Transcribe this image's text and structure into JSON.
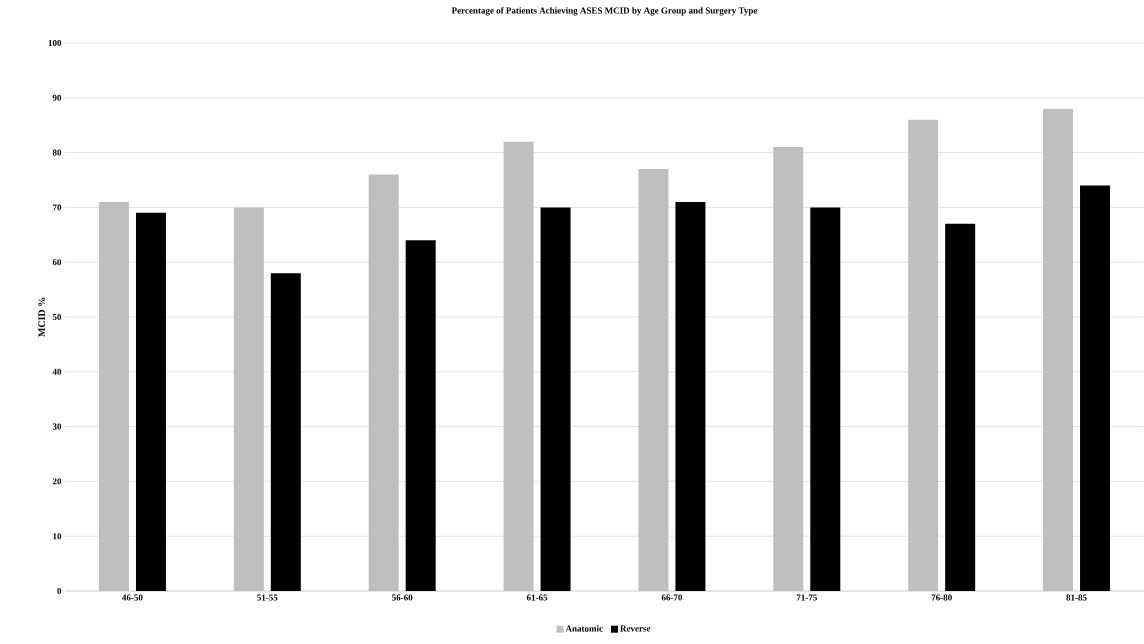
{
  "chart_data": {
    "type": "bar",
    "title": "Percentage of Patients Achieving ASES MCID by Age Group and Surgery Type",
    "ylabel": "MCID %",
    "categories": [
      "46-50",
      "51-55",
      "56-60",
      "61-65",
      "66-70",
      "71-75",
      "76-80",
      "81-85"
    ],
    "series": [
      {
        "name": "Anatomic",
        "color": "#bfbfbf",
        "values": [
          71,
          70,
          76,
          82,
          77,
          81,
          86,
          88
        ]
      },
      {
        "name": "Reverse",
        "color": "#000000",
        "values": [
          69,
          58,
          64,
          70,
          71,
          70,
          67,
          74
        ]
      }
    ],
    "ylim": [
      0,
      100
    ],
    "yticks": [
      0,
      10,
      20,
      30,
      40,
      50,
      60,
      70,
      80,
      90,
      100
    ],
    "grid": "y",
    "legend": "bottom"
  }
}
